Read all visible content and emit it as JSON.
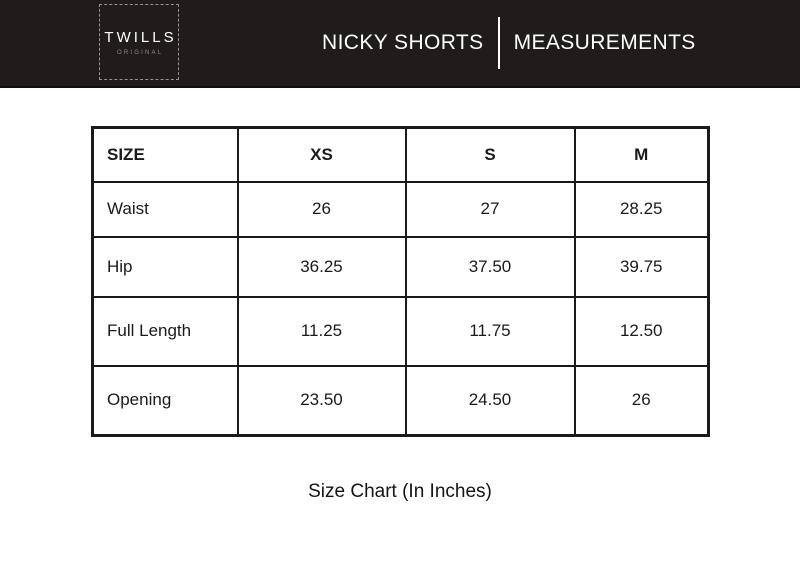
{
  "header": {
    "brand": "TWILLS",
    "brand_sub": "ORIGINAL",
    "product": "NICKY SHORTS",
    "section": "MEASUREMENTS"
  },
  "chart_data": {
    "type": "table",
    "title": "NICKY SHORTS MEASUREMENTS",
    "columns": [
      "SIZE",
      "XS",
      "S",
      "M"
    ],
    "rows": [
      {
        "label": "Waist",
        "values": [
          "26",
          "27",
          "28.25"
        ]
      },
      {
        "label": "Hip",
        "values": [
          "36.25",
          "37.50",
          "39.75"
        ]
      },
      {
        "label": "Full Length",
        "values": [
          "11.25",
          "11.75",
          "12.50"
        ]
      },
      {
        "label": "Opening",
        "values": [
          "23.50",
          "24.50",
          "26"
        ]
      }
    ],
    "units": "Inches",
    "caption": "Size Chart (In Inches)"
  },
  "colors": {
    "header_bg": "#201c1c",
    "header_text": "#ffffff",
    "table_border": "#1a1a1a",
    "text": "#1a1a1a",
    "brand_sub_gray": "#8f8c8c"
  }
}
